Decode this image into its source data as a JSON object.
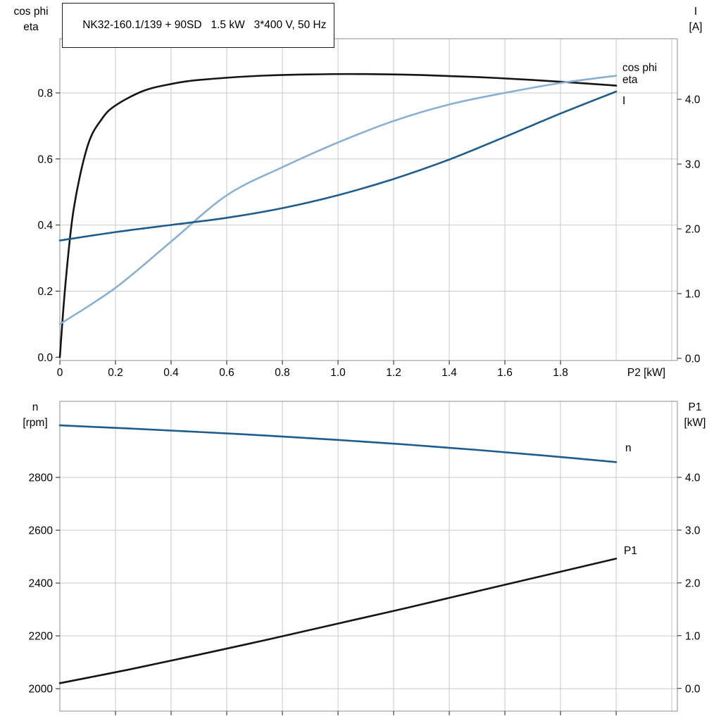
{
  "title": "NK32-160.1/139 + 90SD   1.5 kW   3*400 V, 50 Hz",
  "colors": {
    "black": "#151515",
    "dark_blue": "#1d5c8c",
    "light_blue": "#88afd4",
    "grid": "#c9c9c9",
    "frame": "#8e8e8e"
  },
  "chart_data": [
    {
      "type": "line",
      "name": "motor-efficiency-current",
      "x_axis": {
        "label": "P2 [kW]",
        "min": 0,
        "max": 2.22,
        "grid_from": 0.2,
        "grid_to": 2.2,
        "grid_step": 0.2,
        "ticks": [
          {
            "v": 0,
            "label": "0"
          },
          {
            "v": 0.2,
            "label": "0.2"
          },
          {
            "v": 0.4,
            "label": "0.4"
          },
          {
            "v": 0.6,
            "label": "0.6"
          },
          {
            "v": 0.8,
            "label": "0.8"
          },
          {
            "v": 1.0,
            "label": "1.0"
          },
          {
            "v": 1.2,
            "label": "1.2"
          },
          {
            "v": 1.4,
            "label": "1.4"
          },
          {
            "v": 1.6,
            "label": "1.6"
          },
          {
            "v": 1.8,
            "label": "1.8"
          }
        ]
      },
      "left_axis": {
        "title_lines": [
          "cos phi",
          "eta"
        ],
        "min": -0.01,
        "max": 0.964,
        "ticks": [
          {
            "v": 0.0,
            "label": "0.0"
          },
          {
            "v": 0.2,
            "label": "0.2"
          },
          {
            "v": 0.4,
            "label": "0.4"
          },
          {
            "v": 0.6,
            "label": "0.6"
          },
          {
            "v": 0.8,
            "label": "0.8"
          }
        ]
      },
      "right_axis": {
        "title_lines": [
          "I",
          "[A]"
        ],
        "min": -0.033,
        "max": 4.935,
        "ticks": [
          {
            "v": 0,
            "label": "0.0"
          },
          {
            "v": 1,
            "label": "1.0"
          },
          {
            "v": 2,
            "label": "2.0"
          },
          {
            "v": 3,
            "label": "3.0"
          },
          {
            "v": 4,
            "label": "4.0"
          }
        ]
      },
      "series": [
        {
          "name": "eta",
          "axis": "left",
          "color": "black",
          "x": [
            0,
            0.02,
            0.05,
            0.1,
            0.15,
            0.2,
            0.3,
            0.4,
            0.5,
            0.7,
            0.9,
            1.1,
            1.3,
            1.5,
            1.7,
            1.85,
            2.0
          ],
          "y": [
            0,
            0.22,
            0.45,
            0.64,
            0.72,
            0.762,
            0.806,
            0.827,
            0.839,
            0.851,
            0.856,
            0.857,
            0.854,
            0.848,
            0.839,
            0.831,
            0.822
          ]
        },
        {
          "name": "cos phi",
          "axis": "left",
          "color": "light_blue",
          "x": [
            0,
            0.2,
            0.4,
            0.6,
            0.8,
            1.0,
            1.2,
            1.4,
            1.6,
            1.8,
            2.0
          ],
          "y": [
            0.1,
            0.21,
            0.35,
            0.49,
            0.575,
            0.65,
            0.715,
            0.765,
            0.8,
            0.83,
            0.852
          ]
        },
        {
          "name": "I",
          "axis": "right",
          "color": "dark_blue",
          "x": [
            0,
            0.2,
            0.4,
            0.6,
            0.8,
            1.0,
            1.2,
            1.4,
            1.6,
            1.8,
            2.0
          ],
          "y": [
            1.82,
            1.95,
            2.06,
            2.17,
            2.32,
            2.52,
            2.77,
            3.07,
            3.42,
            3.78,
            4.12
          ]
        }
      ]
    },
    {
      "type": "line",
      "name": "speed-input-power",
      "x_axis": {
        "label": "",
        "min": 0,
        "max": 2.22,
        "grid_from": 0.2,
        "grid_to": 2.2,
        "grid_step": 0.2,
        "ticks": [
          {
            "v": 0.2,
            "label": ""
          },
          {
            "v": 0.4,
            "label": ""
          },
          {
            "v": 0.6,
            "label": ""
          },
          {
            "v": 0.8,
            "label": ""
          },
          {
            "v": 1.0,
            "label": ""
          },
          {
            "v": 1.2,
            "label": ""
          },
          {
            "v": 1.4,
            "label": ""
          },
          {
            "v": 1.6,
            "label": ""
          },
          {
            "v": 1.8,
            "label": ""
          },
          {
            "v": 2.0,
            "label": ""
          }
        ]
      },
      "left_axis": {
        "title_lines": [
          "n",
          "[rpm]"
        ],
        "min": 1915,
        "max": 3088,
        "ticks": [
          {
            "v": 2000,
            "label": "2000"
          },
          {
            "v": 2200,
            "label": "2200"
          },
          {
            "v": 2400,
            "label": "2400"
          },
          {
            "v": 2600,
            "label": "2600"
          },
          {
            "v": 2800,
            "label": "2800"
          }
        ]
      },
      "right_axis": {
        "title_lines": [
          "P1",
          "[kW]"
        ],
        "min": -0.43,
        "max": 5.44,
        "ticks": [
          {
            "v": 0,
            "label": "0.0"
          },
          {
            "v": 1,
            "label": "1.0"
          },
          {
            "v": 2,
            "label": "2.0"
          },
          {
            "v": 3,
            "label": "3.0"
          },
          {
            "v": 4,
            "label": "4.0"
          }
        ]
      },
      "series": [
        {
          "name": "n",
          "axis": "left",
          "color": "dark_blue",
          "x": [
            0,
            0.25,
            0.5,
            0.75,
            1.0,
            1.25,
            1.5,
            1.75,
            2.0
          ],
          "y": [
            2997,
            2985,
            2972,
            2958,
            2942,
            2924,
            2904,
            2882,
            2858
          ]
        },
        {
          "name": "P1",
          "axis": "right",
          "color": "black",
          "x": [
            0,
            0.25,
            0.5,
            0.75,
            1.0,
            1.25,
            1.5,
            1.75,
            2.0
          ],
          "y": [
            0.1,
            0.36,
            0.64,
            0.93,
            1.23,
            1.53,
            1.84,
            2.15,
            2.46
          ]
        }
      ]
    }
  ]
}
